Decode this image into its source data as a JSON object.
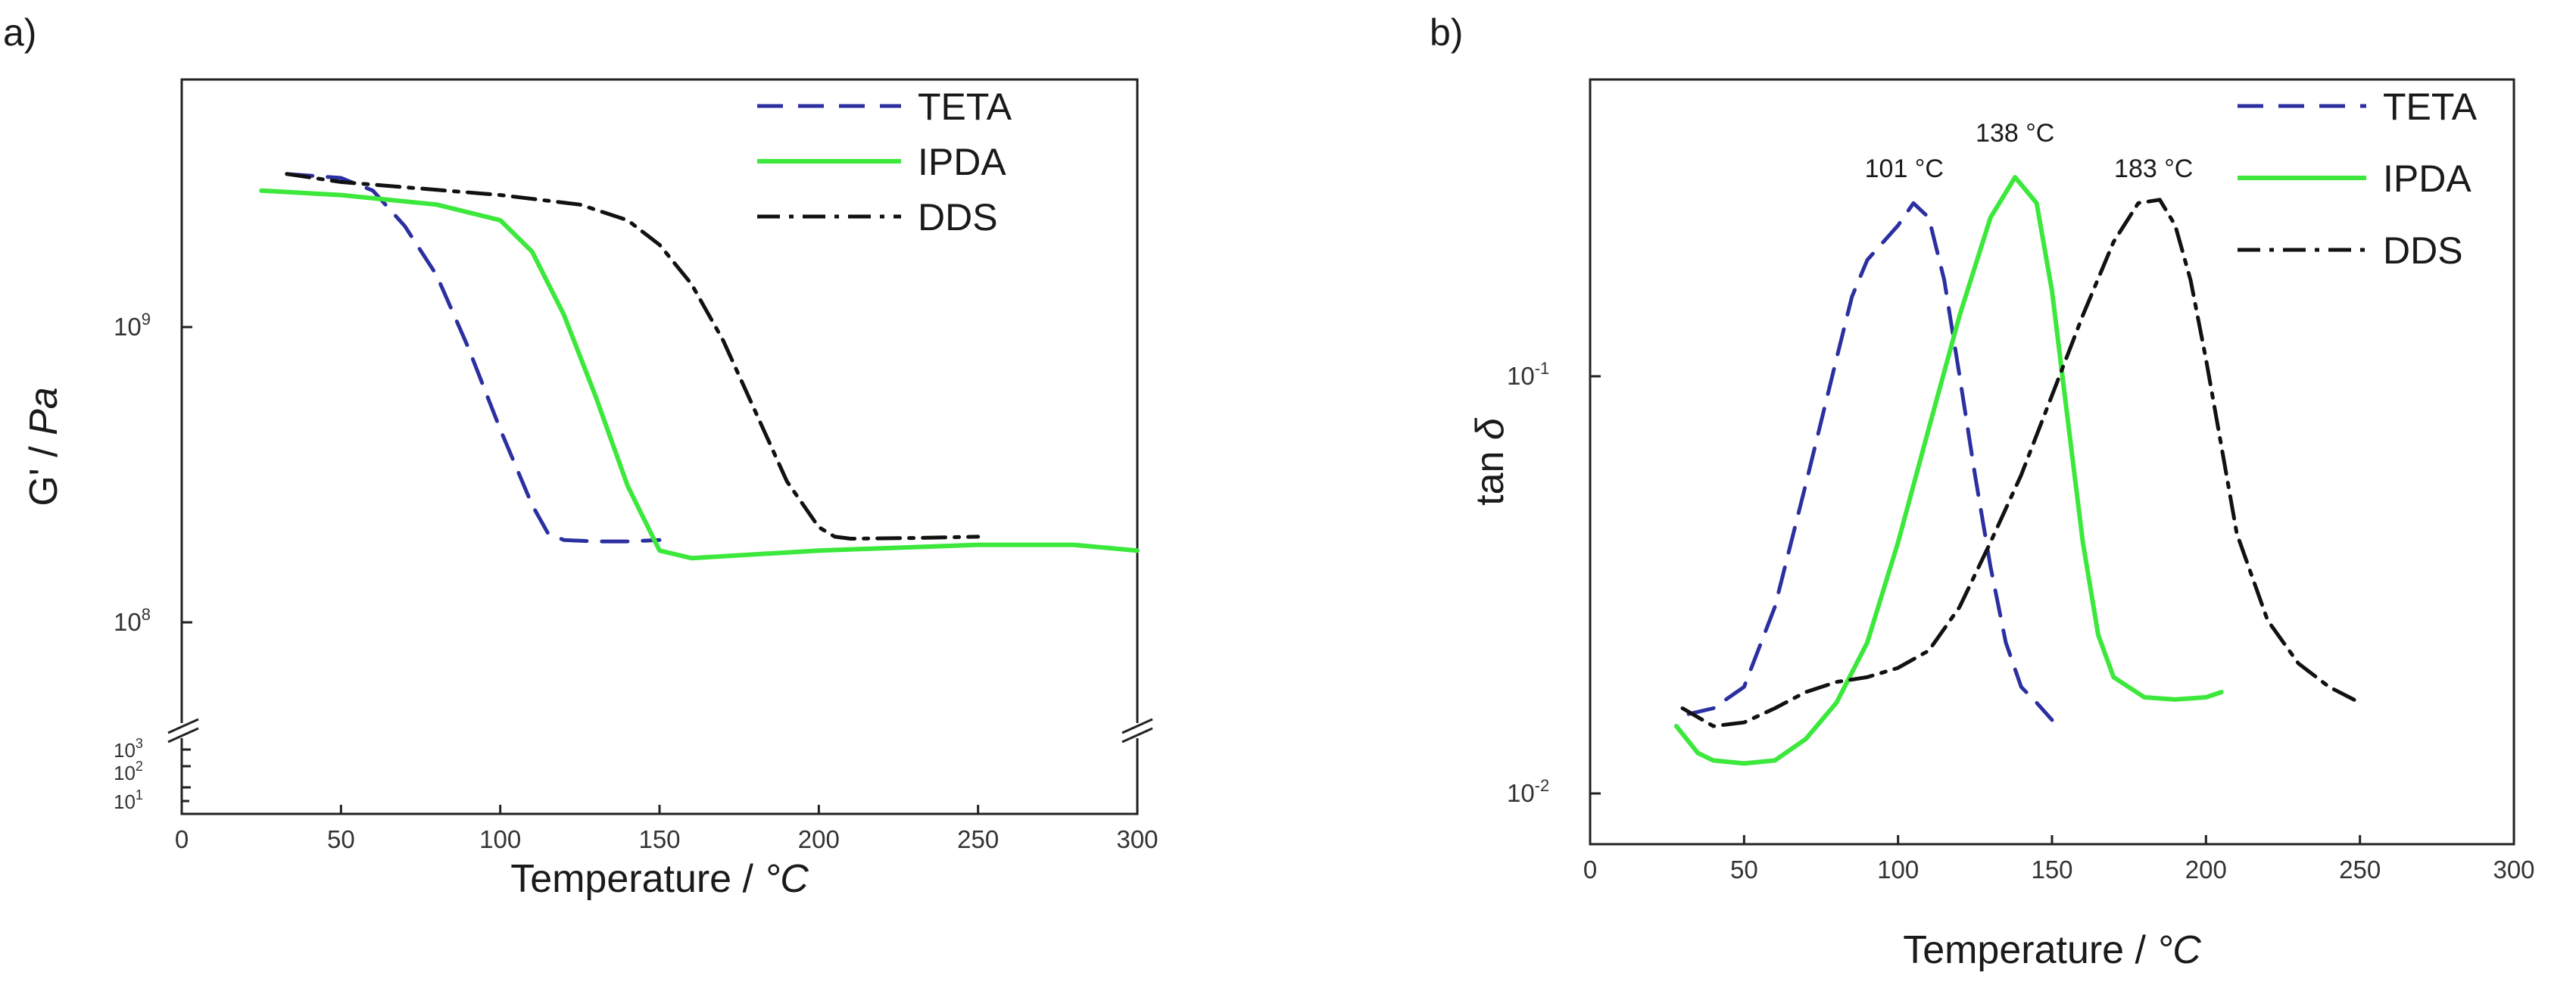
{
  "panels": [
    {
      "label": "a)",
      "break_ticks": [
        "10",
        "10",
        "10"
      ],
      "break_ticks_exp": [
        "3",
        "2",
        "1"
      ]
    },
    {
      "label": "b)"
    }
  ],
  "chart_data": [
    {
      "type": "line",
      "xlabel": "Temperature  /  ",
      "xlabel_unit": "°C",
      "ylabel": "G' / ",
      "ylabel_unit": "Pa",
      "yscale": "log",
      "xlim": [
        0,
        300
      ],
      "ylim": [
        50000000,
        7000000000
      ],
      "x_ticks": [
        "0",
        "50",
        "100",
        "150",
        "200",
        "250",
        "300"
      ],
      "y_ticks": [
        {
          "base": "10",
          "exp": "9"
        },
        {
          "base": "10",
          "exp": "8"
        }
      ],
      "legend_position": "top-right",
      "grid": false,
      "series": [
        {
          "name": "TETA",
          "color": "#2b2fa0",
          "dash": "dashed",
          "x": [
            33,
            50,
            60,
            70,
            80,
            90,
            100,
            110,
            115,
            120,
            130,
            140,
            150
          ],
          "y": [
            3300000000,
            3200000000,
            2900000000,
            2200000000,
            1500000000,
            850000000,
            450000000,
            250000000,
            200000000,
            190000000,
            188000000,
            188000000,
            190000000
          ]
        },
        {
          "name": "IPDA",
          "color": "#3be83b",
          "dash": "solid",
          "x": [
            25,
            50,
            80,
            100,
            110,
            120,
            130,
            140,
            150,
            160,
            200,
            250,
            280,
            300
          ],
          "y": [
            2900000000,
            2800000000,
            2600000000,
            2300000000,
            1800000000,
            1100000000,
            580000000,
            290000000,
            175000000,
            165000000,
            175000000,
            183000000,
            183000000,
            175000000
          ]
        },
        {
          "name": "DDS",
          "color": "#111111",
          "dash": "dashdot",
          "x": [
            33,
            50,
            100,
            125,
            140,
            150,
            160,
            170,
            180,
            190,
            200,
            205,
            210,
            230,
            250
          ],
          "y": [
            3300000000,
            3100000000,
            2800000000,
            2600000000,
            2300000000,
            1900000000,
            1400000000,
            900000000,
            520000000,
            300000000,
            210000000,
            195000000,
            192000000,
            193000000,
            195000000
          ]
        }
      ]
    },
    {
      "type": "line",
      "xlabel": "Temperature  /  ",
      "xlabel_unit": "°C",
      "ylabel": "tan ",
      "ylabel_sym": "δ",
      "yscale": "log",
      "xlim": [
        0,
        300
      ],
      "ylim": [
        0.0085,
        0.5
      ],
      "x_ticks": [
        "0",
        "50",
        "100",
        "150",
        "200",
        "250",
        "300"
      ],
      "y_ticks": [
        {
          "base": "10",
          "exp": "-1"
        },
        {
          "base": "10",
          "exp": "-2"
        }
      ],
      "legend_position": "top-right",
      "grid": false,
      "annotations": [
        {
          "text": "101 °C",
          "x": 102,
          "y": 0.3
        },
        {
          "text": "138 °C",
          "x": 138,
          "y": 0.365
        },
        {
          "text": "183 °C",
          "x": 183,
          "y": 0.3
        }
      ],
      "series": [
        {
          "name": "TETA",
          "color": "#2b2fa0",
          "dash": "dashed",
          "x": [
            32,
            40,
            50,
            60,
            70,
            80,
            85,
            90,
            100,
            105,
            110,
            115,
            120,
            125,
            130,
            135,
            140,
            145,
            150
          ],
          "y": [
            0.0155,
            0.016,
            0.018,
            0.028,
            0.055,
            0.11,
            0.155,
            0.19,
            0.23,
            0.26,
            0.24,
            0.17,
            0.1,
            0.058,
            0.035,
            0.023,
            0.018,
            0.0165,
            0.015
          ]
        },
        {
          "name": "IPDA",
          "color": "#3be83b",
          "dash": "solid",
          "x": [
            28,
            35,
            40,
            50,
            60,
            70,
            80,
            90,
            100,
            110,
            120,
            130,
            138,
            145,
            150,
            155,
            160,
            165,
            170,
            180,
            190,
            200,
            205
          ],
          "y": [
            0.0145,
            0.0125,
            0.012,
            0.0118,
            0.012,
            0.0135,
            0.0165,
            0.023,
            0.04,
            0.075,
            0.14,
            0.24,
            0.3,
            0.26,
            0.16,
            0.08,
            0.04,
            0.024,
            0.019,
            0.017,
            0.0168,
            0.017,
            0.0175
          ]
        },
        {
          "name": "DDS",
          "color": "#111111",
          "dash": "dashdot",
          "x": [
            30,
            40,
            50,
            60,
            70,
            80,
            90,
            100,
            110,
            120,
            130,
            140,
            150,
            160,
            170,
            178,
            185,
            190,
            195,
            200,
            205,
            210,
            220,
            230,
            240,
            250
          ],
          "y": [
            0.016,
            0.0145,
            0.0148,
            0.016,
            0.0175,
            0.0185,
            0.019,
            0.02,
            0.022,
            0.028,
            0.04,
            0.058,
            0.09,
            0.14,
            0.21,
            0.26,
            0.265,
            0.23,
            0.17,
            0.11,
            0.068,
            0.042,
            0.026,
            0.0205,
            0.018,
            0.0165
          ]
        }
      ]
    }
  ]
}
